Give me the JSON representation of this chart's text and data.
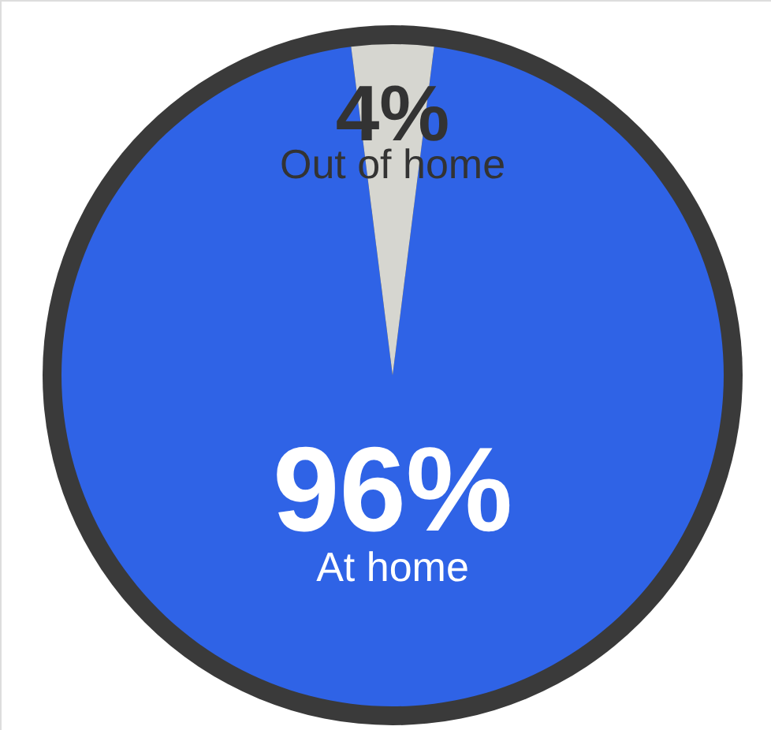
{
  "chart_data": {
    "type": "pie",
    "categories": [
      "At home",
      "Out of home"
    ],
    "values": [
      96,
      4
    ],
    "colors": [
      "#2f63e6",
      "#d6d6d0"
    ],
    "value_labels": [
      "96%",
      "4%"
    ]
  }
}
